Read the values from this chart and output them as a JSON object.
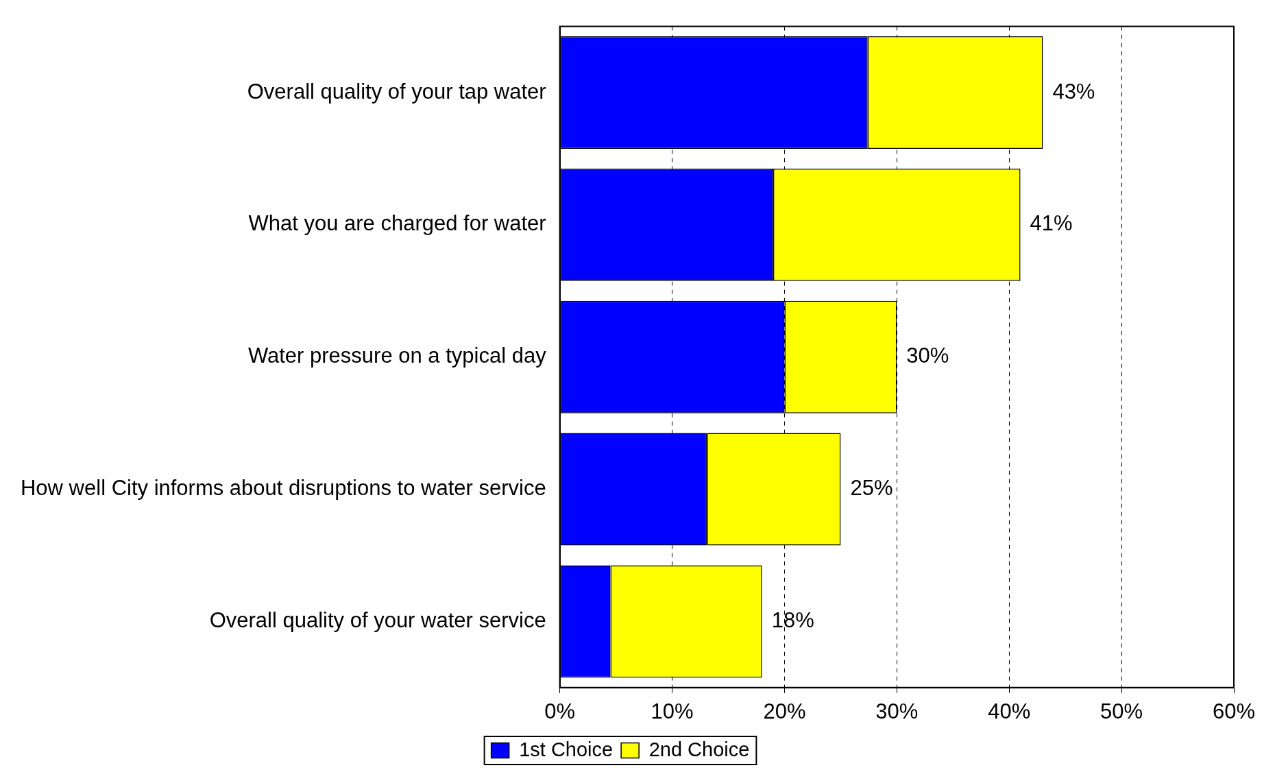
{
  "chart_data": {
    "type": "bar",
    "orientation": "horizontal",
    "stacked": true,
    "categories": [
      "Overall quality of your tap water",
      "What you are charged for water",
      "Water pressure on a typical day",
      "How well City informs about disruptions to water service",
      "Overall quality of your water service"
    ],
    "series": [
      {
        "name": "1st Choice",
        "color": "#0000ff",
        "values": [
          27.4,
          19,
          20,
          13.1,
          4.5
        ]
      },
      {
        "name": "2nd Choice",
        "color": "#ffff00",
        "values": [
          15.6,
          22,
          10,
          11.9,
          13.5
        ]
      }
    ],
    "totals": [
      "43%",
      "41%",
      "30%",
      "25%",
      "18%"
    ],
    "xlim": [
      0,
      60
    ],
    "xticks": [
      {
        "value": 0,
        "label": "0%"
      },
      {
        "value": 10,
        "label": "10%"
      },
      {
        "value": 20,
        "label": "20%"
      },
      {
        "value": 30,
        "label": "30%"
      },
      {
        "value": 40,
        "label": "40%"
      },
      {
        "value": 50,
        "label": "50%"
      },
      {
        "value": 60,
        "label": "60%"
      }
    ],
    "grid": "x",
    "legend": "bottom"
  }
}
